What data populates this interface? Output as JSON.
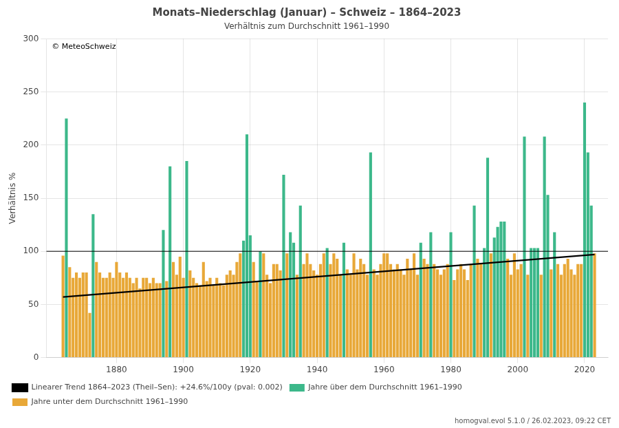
{
  "chart_data": {
    "type": "bar",
    "title": "Monats–Niederschlag (Januar) – Schweiz – 1864–2023",
    "subtitle": "Verhältnis zum Durchschnitt 1961–1990",
    "ylabel": "Verhältnis %",
    "annotations": [
      "© MeteoSchweiz",
      "homogval.evol 5.1.0 / 26.02.2023, 09:22 CET"
    ],
    "x": [
      1864,
      1865,
      1866,
      1867,
      1868,
      1869,
      1870,
      1871,
      1872,
      1873,
      1874,
      1875,
      1876,
      1877,
      1878,
      1879,
      1880,
      1881,
      1882,
      1883,
      1884,
      1885,
      1886,
      1887,
      1888,
      1889,
      1890,
      1891,
      1892,
      1893,
      1894,
      1895,
      1896,
      1897,
      1898,
      1899,
      1900,
      1901,
      1902,
      1903,
      1904,
      1905,
      1906,
      1907,
      1908,
      1909,
      1910,
      1911,
      1912,
      1913,
      1914,
      1915,
      1916,
      1917,
      1918,
      1919,
      1920,
      1921,
      1922,
      1923,
      1924,
      1925,
      1926,
      1927,
      1928,
      1929,
      1930,
      1931,
      1932,
      1933,
      1934,
      1935,
      1936,
      1937,
      1938,
      1939,
      1940,
      1941,
      1942,
      1943,
      1944,
      1945,
      1946,
      1947,
      1948,
      1949,
      1950,
      1951,
      1952,
      1953,
      1954,
      1955,
      1956,
      1957,
      1958,
      1959,
      1960,
      1961,
      1962,
      1963,
      1964,
      1965,
      1966,
      1967,
      1968,
      1969,
      1970,
      1971,
      1972,
      1973,
      1974,
      1975,
      1976,
      1977,
      1978,
      1979,
      1980,
      1981,
      1982,
      1983,
      1984,
      1985,
      1986,
      1987,
      1988,
      1989,
      1990,
      1991,
      1992,
      1993,
      1994,
      1995,
      1996,
      1997,
      1998,
      1999,
      2000,
      2001,
      2002,
      2003,
      2004,
      2005,
      2006,
      2007,
      2008,
      2009,
      2010,
      2011,
      2012,
      2013,
      2014,
      2015,
      2016,
      2017,
      2018,
      2019,
      2020,
      2021,
      2022,
      2023
    ],
    "series": [
      {
        "name": "Jahre über dem Durchschnitt 1961–1990",
        "color": "#3cb88a",
        "values": [
          null,
          225,
          null,
          null,
          null,
          null,
          null,
          null,
          null,
          135,
          null,
          null,
          null,
          null,
          null,
          null,
          null,
          null,
          null,
          null,
          null,
          null,
          null,
          null,
          null,
          null,
          null,
          null,
          null,
          null,
          120,
          null,
          180,
          null,
          null,
          null,
          null,
          185,
          null,
          null,
          null,
          null,
          null,
          null,
          null,
          null,
          null,
          null,
          null,
          null,
          null,
          null,
          null,
          null,
          110,
          210,
          115,
          null,
          null,
          100,
          null,
          null,
          null,
          null,
          null,
          null,
          172,
          null,
          118,
          108,
          null,
          143,
          null,
          null,
          null,
          null,
          null,
          null,
          null,
          103,
          null,
          null,
          null,
          null,
          108,
          null,
          null,
          null,
          null,
          null,
          null,
          null,
          193,
          null,
          null,
          null,
          null,
          null,
          null,
          null,
          null,
          null,
          null,
          null,
          null,
          null,
          null,
          108,
          null,
          null,
          118,
          null,
          null,
          null,
          null,
          null,
          118,
          null,
          null,
          null,
          null,
          null,
          null,
          143,
          null,
          null,
          103,
          188,
          null,
          113,
          123,
          128,
          128,
          null,
          null,
          null,
          null,
          null,
          208,
          null,
          103,
          103,
          103,
          null,
          208,
          153,
          null,
          118,
          null,
          null,
          null,
          null,
          null,
          null,
          null,
          null,
          240,
          193,
          143,
          null
        ]
      },
      {
        "name": "Jahre unter dem Durchschnitt 1961–1990",
        "color": "#e8a838",
        "values": [
          96,
          null,
          85,
          75,
          80,
          75,
          80,
          80,
          42,
          null,
          90,
          80,
          75,
          75,
          80,
          75,
          90,
          80,
          75,
          80,
          75,
          70,
          75,
          65,
          75,
          75,
          70,
          75,
          70,
          70,
          null,
          72,
          null,
          90,
          78,
          95,
          75,
          null,
          82,
          75,
          70,
          68,
          90,
          72,
          75,
          68,
          75,
          70,
          68,
          78,
          82,
          78,
          90,
          98,
          null,
          null,
          null,
          90,
          72,
          null,
          98,
          78,
          70,
          88,
          88,
          82,
          null,
          98,
          null,
          null,
          78,
          null,
          88,
          98,
          88,
          82,
          78,
          88,
          98,
          null,
          88,
          98,
          93,
          78,
          null,
          83,
          78,
          98,
          83,
          93,
          88,
          78,
          null,
          83,
          78,
          88,
          98,
          98,
          88,
          83,
          88,
          83,
          78,
          93,
          83,
          98,
          78,
          null,
          93,
          88,
          null,
          88,
          83,
          78,
          83,
          88,
          null,
          73,
          83,
          88,
          83,
          73,
          88,
          null,
          93,
          88,
          null,
          null,
          98,
          null,
          null,
          null,
          null,
          93,
          78,
          98,
          83,
          88,
          null,
          78,
          null,
          null,
          null,
          78,
          null,
          null,
          83,
          null,
          88,
          78,
          88,
          93,
          83,
          78,
          88,
          88,
          null,
          null,
          null,
          98
        ]
      },
      {
        "name": "Linearer Trend 1864–2023 (Theil–Sen): +24.6%/100y (pval: 0.002)",
        "type": "line",
        "color": "#000000",
        "x": [
          1864,
          2023
        ],
        "values": [
          57,
          97
        ]
      }
    ],
    "reference_line": 100,
    "xlim": [
      1859,
      2027
    ],
    "xticks": [
      1880,
      1900,
      1920,
      1940,
      1960,
      1980,
      2000,
      2020
    ],
    "ylim": [
      0,
      300
    ],
    "yticks": [
      0,
      50,
      100,
      150,
      200,
      250,
      300
    ],
    "grid": true,
    "legend": "bottom"
  }
}
